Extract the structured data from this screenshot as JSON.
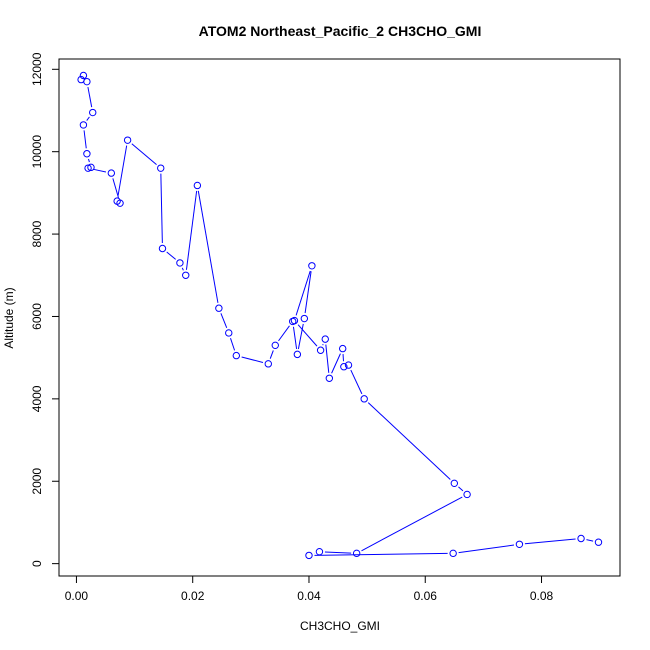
{
  "chart_data": {
    "type": "line",
    "title": "ATOM2 Northeast_Pacific_2 CH3CHO_GMI",
    "xlabel": "CH3CHO_GMI",
    "ylabel": "Altitude (m)",
    "xlim": [
      -0.003,
      0.0935
    ],
    "ylim": [
      -300,
      12250
    ],
    "xticks": [
      0.0,
      0.02,
      0.04,
      0.06,
      0.08
    ],
    "xtick_labels": [
      "0.00",
      "0.02",
      "0.04",
      "0.06",
      "0.08"
    ],
    "yticks": [
      0,
      2000,
      4000,
      6000,
      8000,
      10000,
      12000
    ],
    "ytick_labels": [
      "0",
      "2000",
      "4000",
      "6000",
      "8000",
      "10000",
      "12000"
    ],
    "grid": false,
    "legend": "none",
    "color": "#0000ff",
    "series": [
      {
        "x": [
          0.0012,
          0.0008,
          0.0018,
          0.0028,
          0.0012,
          0.0018,
          0.0025,
          0.002,
          0.006,
          0.0075,
          0.007,
          0.0088,
          0.0145,
          0.0148,
          0.0178,
          0.0188,
          0.0208,
          0.0245,
          0.0262,
          0.0275,
          0.033,
          0.0342,
          0.0372,
          0.038,
          0.0392,
          0.0405,
          0.0375,
          0.042,
          0.0428,
          0.0435,
          0.0458,
          0.046,
          0.0468,
          0.0495,
          0.065,
          0.0672,
          0.0482,
          0.0418,
          0.04,
          0.0648,
          0.0762,
          0.0868,
          0.0898
        ],
        "y": [
          11850,
          11750,
          11700,
          10950,
          10650,
          9950,
          9620,
          9600,
          9480,
          8750,
          8800,
          10280,
          9600,
          7650,
          7300,
          7000,
          9180,
          6200,
          5600,
          5050,
          4850,
          5300,
          5880,
          5080,
          5950,
          7230,
          5900,
          5180,
          5450,
          4500,
          5220,
          4780,
          4820,
          4000,
          1950,
          1680,
          250,
          290,
          200,
          250,
          470,
          610,
          520
        ]
      }
    ]
  }
}
